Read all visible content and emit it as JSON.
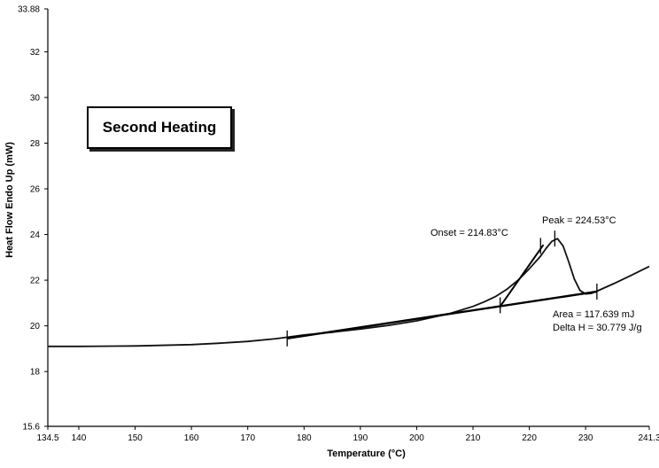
{
  "chart_data": {
    "type": "line",
    "title": "",
    "box_label": "Second Heating",
    "xlabel": "Temperature (°C)",
    "ylabel": "Heat Flow Endo Up (mW)",
    "xlim": [
      134.5,
      241.3
    ],
    "ylim": [
      15.6,
      33.88
    ],
    "x_ticks": [
      134.5,
      140,
      150,
      160,
      170,
      180,
      190,
      200,
      210,
      220,
      230,
      241.3
    ],
    "x_tick_labels": [
      "134.5",
      "140",
      "150",
      "160",
      "170",
      "180",
      "190",
      "200",
      "210",
      "220",
      "230",
      "241.3"
    ],
    "y_ticks": [
      15.6,
      18,
      20,
      22,
      24,
      26,
      28,
      30,
      32,
      33.88
    ],
    "y_tick_labels": [
      "15.6",
      "18",
      "20",
      "22",
      "24",
      "26",
      "28",
      "30",
      "32",
      "33.88"
    ],
    "grid": false,
    "series": [
      {
        "x": [
          134.5,
          140,
          150,
          160,
          165,
          170,
          175,
          180,
          185,
          190,
          195,
          200,
          203,
          206,
          208,
          210,
          212,
          214,
          216,
          218,
          220,
          222,
          223,
          224,
          225,
          226,
          227,
          228,
          229,
          230,
          231,
          232,
          235,
          238,
          241.3
        ],
        "values": [
          19.1,
          19.1,
          19.12,
          19.18,
          19.24,
          19.32,
          19.44,
          19.6,
          19.72,
          19.86,
          20.02,
          20.22,
          20.38,
          20.55,
          20.7,
          20.85,
          21.05,
          21.28,
          21.6,
          22.0,
          22.5,
          23.05,
          23.4,
          23.7,
          23.82,
          23.5,
          22.8,
          22.05,
          21.55,
          21.4,
          21.42,
          21.52,
          21.85,
          22.2,
          22.6
        ]
      }
    ],
    "baseline": {
      "x": [
        177,
        232
      ],
      "values": [
        19.45,
        21.5
      ]
    },
    "onset_tangent": {
      "x": [
        214.83,
        222.5
      ],
      "values": [
        20.85,
        23.55
      ]
    },
    "markers": [
      {
        "x": 177,
        "y": 19.45
      },
      {
        "x": 214.83,
        "y": 20.9
      },
      {
        "x": 222,
        "y": 23.5
      },
      {
        "x": 224.53,
        "y": 23.82
      },
      {
        "x": 232,
        "y": 21.5
      }
    ],
    "annotations": {
      "onset": "Onset = 214.83°C",
      "peak": "Peak = 224.53°C",
      "area": "Area = 117.639 mJ",
      "delta_h": "Delta H = 30.779 J/g"
    }
  }
}
